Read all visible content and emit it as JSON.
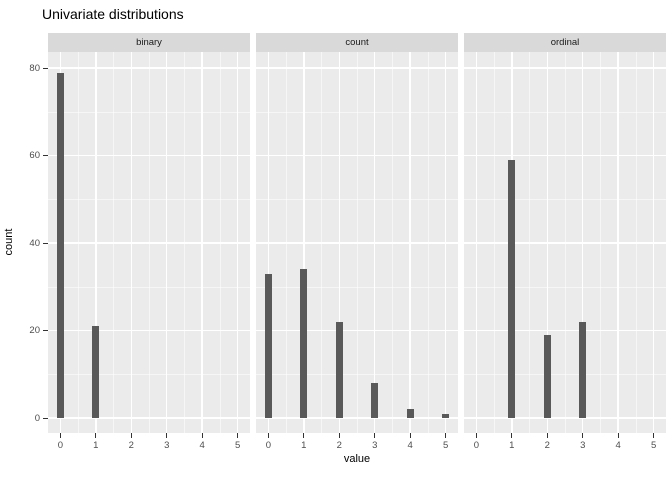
{
  "title": "Univariate distributions",
  "chart_data": {
    "type": "bar",
    "title": "Univariate distributions",
    "xlabel": "value",
    "ylabel": "count",
    "facets": [
      {
        "label": "binary",
        "x": [
          0,
          1
        ],
        "counts": [
          79,
          21
        ]
      },
      {
        "label": "count",
        "x": [
          0,
          1,
          2,
          3,
          4,
          5
        ],
        "counts": [
          33,
          34,
          22,
          8,
          2,
          1
        ]
      },
      {
        "label": "ordinal",
        "x": [
          1,
          2,
          3
        ],
        "counts": [
          59,
          19,
          22
        ]
      }
    ],
    "x_ticks": [
      0,
      1,
      2,
      3,
      4,
      5
    ],
    "y_ticks": [
      0,
      20,
      40,
      60,
      80
    ],
    "y_minor_ticks": [
      10,
      30,
      50,
      70
    ],
    "x_minor_ticks": [
      0.5,
      1.5,
      2.5,
      3.5,
      4.5
    ],
    "xlim": [
      -0.35,
      5.35
    ],
    "ylim": [
      -3.4,
      83.7
    ],
    "grid": true,
    "legend": "none",
    "facet_row_label_position": "top"
  },
  "colors": {
    "bar": "#595959",
    "panel_bg": "#EBEBEB",
    "strip_bg": "#D9D9D9",
    "grid": "#FFFFFF",
    "tick_text": "#4D4D4D",
    "strip_text": "#1A1A1A",
    "title_text": "#000000"
  }
}
